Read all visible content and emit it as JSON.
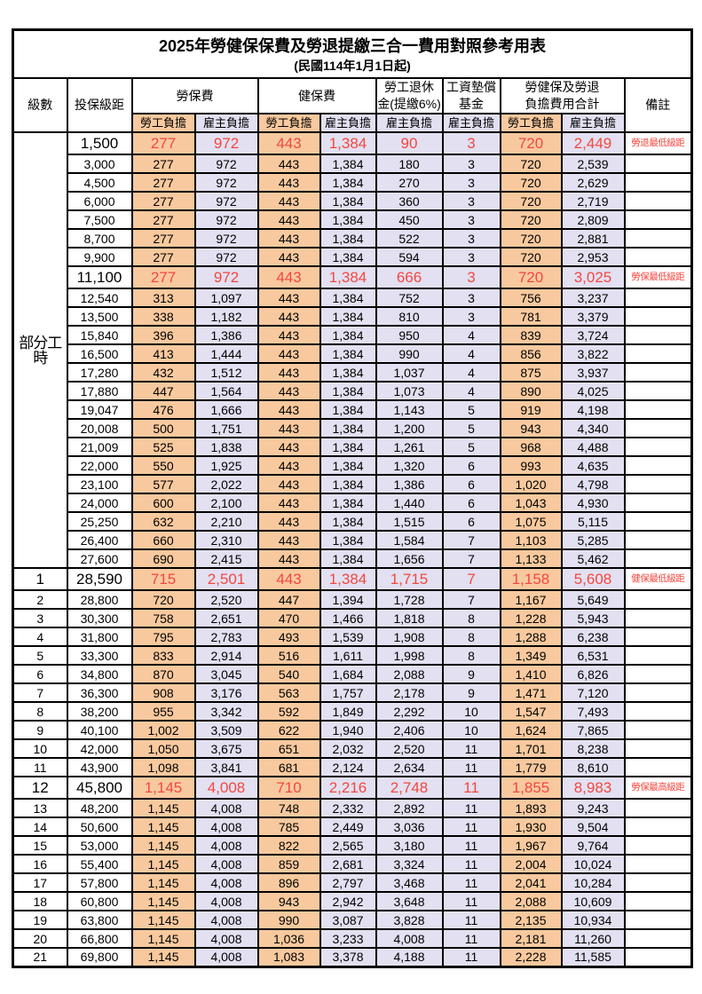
{
  "title": "2025年勞健保保費及勞退提繳三合一費用對照參考用表",
  "subtitle": "(民國114年1月1日起)",
  "columns": {
    "level": "級數",
    "salary_bracket": "投保級距",
    "labor_insurance": "勞保費",
    "health_insurance": "健保費",
    "pension": "勞工退休\n金(提繳6%)",
    "wage_fund": "工資墊償\n基金",
    "total": "勞健保及勞退\n負擔費用合計",
    "notes": "備註",
    "employee_share": "勞工負擔",
    "employer_share": "雇主負擔"
  },
  "part_time": {
    "label": "部分工時",
    "row_count": 23
  },
  "colors": {
    "employee_bg": "#F8C99E",
    "employer_bg": "#E2E0F1",
    "highlight_red": "#F4473F"
  },
  "value_column_types": [
    "emp",
    "er",
    "emp",
    "er",
    "er",
    "er",
    "emp",
    "er"
  ],
  "rows": [
    {
      "level": "",
      "salary": "1,500",
      "values": [
        "277",
        "972",
        "443",
        "1,384",
        "90",
        "3",
        "720",
        "2,449"
      ],
      "note": "勞退最低級距",
      "highlight": true
    },
    {
      "level": "",
      "salary": "3,000",
      "values": [
        "277",
        "972",
        "443",
        "1,384",
        "180",
        "3",
        "720",
        "2,539"
      ],
      "note": "",
      "highlight": false
    },
    {
      "level": "",
      "salary": "4,500",
      "values": [
        "277",
        "972",
        "443",
        "1,384",
        "270",
        "3",
        "720",
        "2,629"
      ],
      "note": "",
      "highlight": false
    },
    {
      "level": "",
      "salary": "6,000",
      "values": [
        "277",
        "972",
        "443",
        "1,384",
        "360",
        "3",
        "720",
        "2,719"
      ],
      "note": "",
      "highlight": false
    },
    {
      "level": "",
      "salary": "7,500",
      "values": [
        "277",
        "972",
        "443",
        "1,384",
        "450",
        "3",
        "720",
        "2,809"
      ],
      "note": "",
      "highlight": false
    },
    {
      "level": "",
      "salary": "8,700",
      "values": [
        "277",
        "972",
        "443",
        "1,384",
        "522",
        "3",
        "720",
        "2,881"
      ],
      "note": "",
      "highlight": false
    },
    {
      "level": "",
      "salary": "9,900",
      "values": [
        "277",
        "972",
        "443",
        "1,384",
        "594",
        "3",
        "720",
        "2,953"
      ],
      "note": "",
      "highlight": false
    },
    {
      "level": "",
      "salary": "11,100",
      "values": [
        "277",
        "972",
        "443",
        "1,384",
        "666",
        "3",
        "720",
        "3,025"
      ],
      "note": "勞保最低級距",
      "highlight": true
    },
    {
      "level": "",
      "salary": "12,540",
      "values": [
        "313",
        "1,097",
        "443",
        "1,384",
        "752",
        "3",
        "756",
        "3,237"
      ],
      "note": "",
      "highlight": false
    },
    {
      "level": "",
      "salary": "13,500",
      "values": [
        "338",
        "1,182",
        "443",
        "1,384",
        "810",
        "3",
        "781",
        "3,379"
      ],
      "note": "",
      "highlight": false
    },
    {
      "level": "",
      "salary": "15,840",
      "values": [
        "396",
        "1,386",
        "443",
        "1,384",
        "950",
        "4",
        "839",
        "3,724"
      ],
      "note": "",
      "highlight": false
    },
    {
      "level": "",
      "salary": "16,500",
      "values": [
        "413",
        "1,444",
        "443",
        "1,384",
        "990",
        "4",
        "856",
        "3,822"
      ],
      "note": "",
      "highlight": false
    },
    {
      "level": "",
      "salary": "17,280",
      "values": [
        "432",
        "1,512",
        "443",
        "1,384",
        "1,037",
        "4",
        "875",
        "3,937"
      ],
      "note": "",
      "highlight": false
    },
    {
      "level": "",
      "salary": "17,880",
      "values": [
        "447",
        "1,564",
        "443",
        "1,384",
        "1,073",
        "4",
        "890",
        "4,025"
      ],
      "note": "",
      "highlight": false
    },
    {
      "level": "",
      "salary": "19,047",
      "values": [
        "476",
        "1,666",
        "443",
        "1,384",
        "1,143",
        "5",
        "919",
        "4,198"
      ],
      "note": "",
      "highlight": false
    },
    {
      "level": "",
      "salary": "20,008",
      "values": [
        "500",
        "1,751",
        "443",
        "1,384",
        "1,200",
        "5",
        "943",
        "4,340"
      ],
      "note": "",
      "highlight": false
    },
    {
      "level": "",
      "salary": "21,009",
      "values": [
        "525",
        "1,838",
        "443",
        "1,384",
        "1,261",
        "5",
        "968",
        "4,488"
      ],
      "note": "",
      "highlight": false
    },
    {
      "level": "",
      "salary": "22,000",
      "values": [
        "550",
        "1,925",
        "443",
        "1,384",
        "1,320",
        "6",
        "993",
        "4,635"
      ],
      "note": "",
      "highlight": false
    },
    {
      "level": "",
      "salary": "23,100",
      "values": [
        "577",
        "2,022",
        "443",
        "1,384",
        "1,386",
        "6",
        "1,020",
        "4,798"
      ],
      "note": "",
      "highlight": false
    },
    {
      "level": "",
      "salary": "24,000",
      "values": [
        "600",
        "2,100",
        "443",
        "1,384",
        "1,440",
        "6",
        "1,043",
        "4,930"
      ],
      "note": "",
      "highlight": false
    },
    {
      "level": "",
      "salary": "25,250",
      "values": [
        "632",
        "2,210",
        "443",
        "1,384",
        "1,515",
        "6",
        "1,075",
        "5,115"
      ],
      "note": "",
      "highlight": false
    },
    {
      "level": "",
      "salary": "26,400",
      "values": [
        "660",
        "2,310",
        "443",
        "1,384",
        "1,584",
        "7",
        "1,103",
        "5,285"
      ],
      "note": "",
      "highlight": false
    },
    {
      "level": "",
      "salary": "27,600",
      "values": [
        "690",
        "2,415",
        "443",
        "1,384",
        "1,656",
        "7",
        "1,133",
        "5,462"
      ],
      "note": "",
      "highlight": false
    },
    {
      "level": "1",
      "salary": "28,590",
      "values": [
        "715",
        "2,501",
        "443",
        "1,384",
        "1,715",
        "7",
        "1,158",
        "5,608"
      ],
      "note": "健保最低級距",
      "highlight": true
    },
    {
      "level": "2",
      "salary": "28,800",
      "values": [
        "720",
        "2,520",
        "447",
        "1,394",
        "1,728",
        "7",
        "1,167",
        "5,649"
      ],
      "note": "",
      "highlight": false
    },
    {
      "level": "3",
      "salary": "30,300",
      "values": [
        "758",
        "2,651",
        "470",
        "1,466",
        "1,818",
        "8",
        "1,228",
        "5,943"
      ],
      "note": "",
      "highlight": false
    },
    {
      "level": "4",
      "salary": "31,800",
      "values": [
        "795",
        "2,783",
        "493",
        "1,539",
        "1,908",
        "8",
        "1,288",
        "6,238"
      ],
      "note": "",
      "highlight": false
    },
    {
      "level": "5",
      "salary": "33,300",
      "values": [
        "833",
        "2,914",
        "516",
        "1,611",
        "1,998",
        "8",
        "1,349",
        "6,531"
      ],
      "note": "",
      "highlight": false
    },
    {
      "level": "6",
      "salary": "34,800",
      "values": [
        "870",
        "3,045",
        "540",
        "1,684",
        "2,088",
        "9",
        "1,410",
        "6,826"
      ],
      "note": "",
      "highlight": false
    },
    {
      "level": "7",
      "salary": "36,300",
      "values": [
        "908",
        "3,176",
        "563",
        "1,757",
        "2,178",
        "9",
        "1,471",
        "7,120"
      ],
      "note": "",
      "highlight": false
    },
    {
      "level": "8",
      "salary": "38,200",
      "values": [
        "955",
        "3,342",
        "592",
        "1,849",
        "2,292",
        "10",
        "1,547",
        "7,493"
      ],
      "note": "",
      "highlight": false
    },
    {
      "level": "9",
      "salary": "40,100",
      "values": [
        "1,002",
        "3,509",
        "622",
        "1,940",
        "2,406",
        "10",
        "1,624",
        "7,865"
      ],
      "note": "",
      "highlight": false
    },
    {
      "level": "10",
      "salary": "42,000",
      "values": [
        "1,050",
        "3,675",
        "651",
        "2,032",
        "2,520",
        "11",
        "1,701",
        "8,238"
      ],
      "note": "",
      "highlight": false
    },
    {
      "level": "11",
      "salary": "43,900",
      "values": [
        "1,098",
        "3,841",
        "681",
        "2,124",
        "2,634",
        "11",
        "1,779",
        "8,610"
      ],
      "note": "",
      "highlight": false
    },
    {
      "level": "12",
      "salary": "45,800",
      "values": [
        "1,145",
        "4,008",
        "710",
        "2,216",
        "2,748",
        "11",
        "1,855",
        "8,983"
      ],
      "note": "勞保最高級距",
      "highlight": true
    },
    {
      "level": "13",
      "salary": "48,200",
      "values": [
        "1,145",
        "4,008",
        "748",
        "2,332",
        "2,892",
        "11",
        "1,893",
        "9,243"
      ],
      "note": "",
      "highlight": false
    },
    {
      "level": "14",
      "salary": "50,600",
      "values": [
        "1,145",
        "4,008",
        "785",
        "2,449",
        "3,036",
        "11",
        "1,930",
        "9,504"
      ],
      "note": "",
      "highlight": false
    },
    {
      "level": "15",
      "salary": "53,000",
      "values": [
        "1,145",
        "4,008",
        "822",
        "2,565",
        "3,180",
        "11",
        "1,967",
        "9,764"
      ],
      "note": "",
      "highlight": false
    },
    {
      "level": "16",
      "salary": "55,400",
      "values": [
        "1,145",
        "4,008",
        "859",
        "2,681",
        "3,324",
        "11",
        "2,004",
        "10,024"
      ],
      "note": "",
      "highlight": false
    },
    {
      "level": "17",
      "salary": "57,800",
      "values": [
        "1,145",
        "4,008",
        "896",
        "2,797",
        "3,468",
        "11",
        "2,041",
        "10,284"
      ],
      "note": "",
      "highlight": false
    },
    {
      "level": "18",
      "salary": "60,800",
      "values": [
        "1,145",
        "4,008",
        "943",
        "2,942",
        "3,648",
        "11",
        "2,088",
        "10,609"
      ],
      "note": "",
      "highlight": false
    },
    {
      "level": "19",
      "salary": "63,800",
      "values": [
        "1,145",
        "4,008",
        "990",
        "3,087",
        "3,828",
        "11",
        "2,135",
        "10,934"
      ],
      "note": "",
      "highlight": false
    },
    {
      "level": "20",
      "salary": "66,800",
      "values": [
        "1,145",
        "4,008",
        "1,036",
        "3,233",
        "4,008",
        "11",
        "2,181",
        "11,260"
      ],
      "note": "",
      "highlight": false
    },
    {
      "level": "21",
      "salary": "69,800",
      "values": [
        "1,145",
        "4,008",
        "1,083",
        "3,378",
        "4,188",
        "11",
        "2,228",
        "11,585"
      ],
      "note": "",
      "highlight": false
    }
  ]
}
